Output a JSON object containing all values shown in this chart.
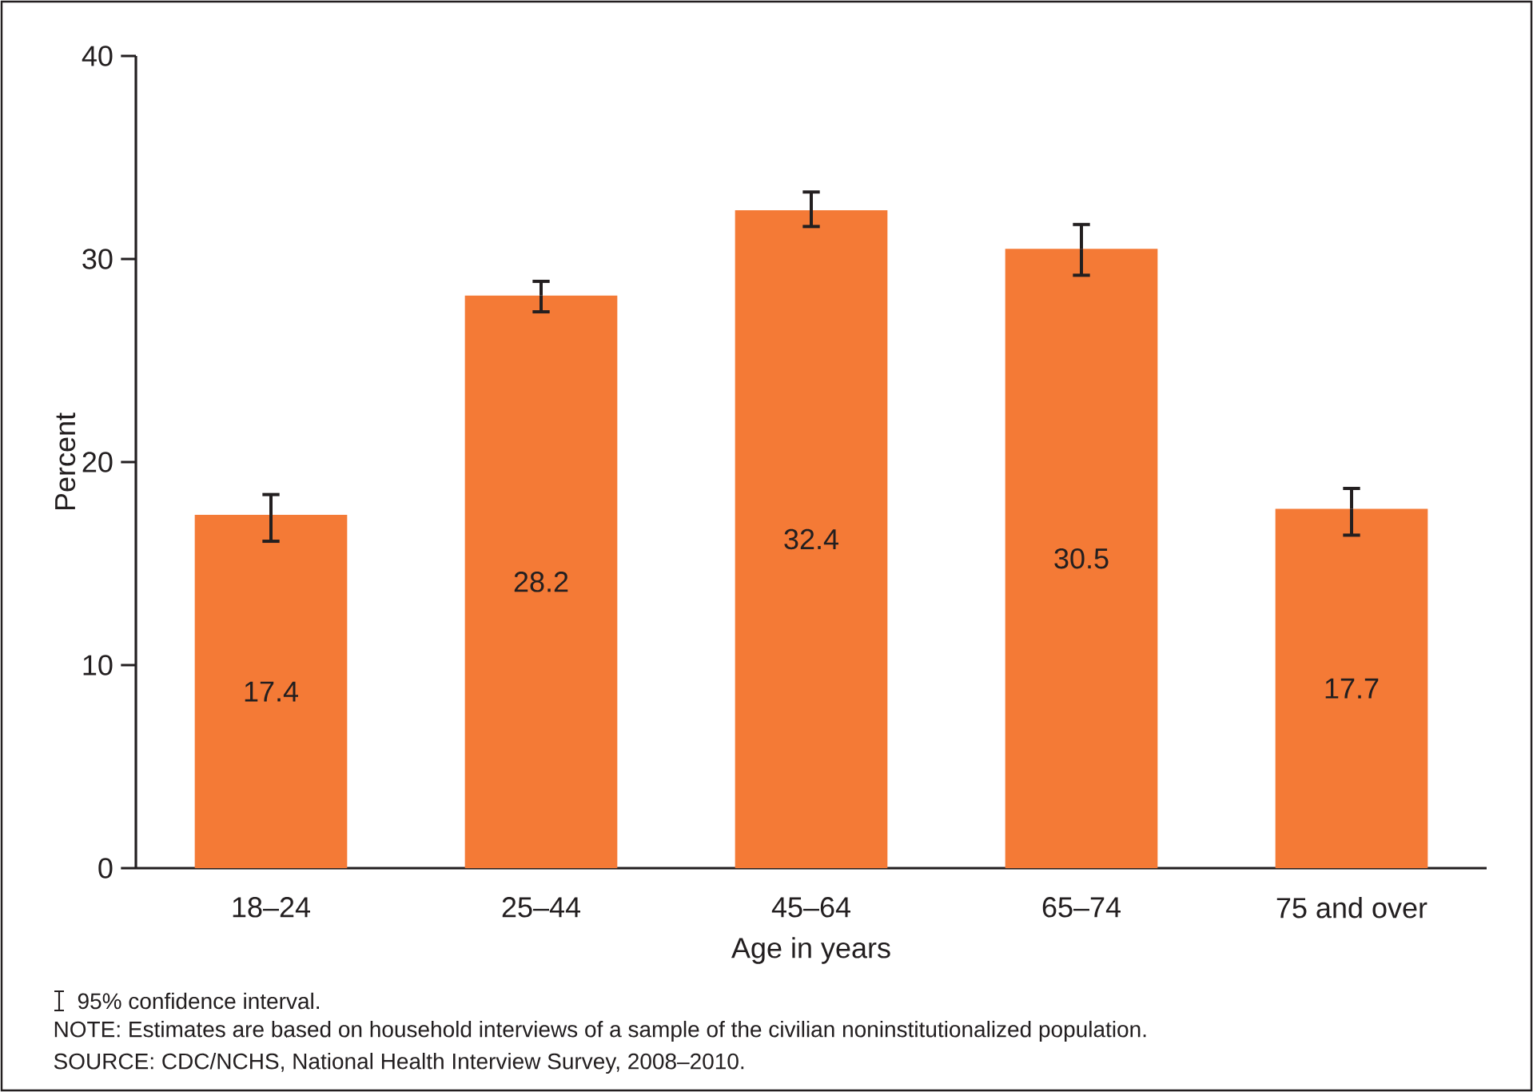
{
  "chart_data": {
    "type": "bar",
    "categories": [
      "18–24",
      "25–44",
      "45–64",
      "65–74",
      "75 and over"
    ],
    "values": [
      17.4,
      28.2,
      32.4,
      30.5,
      17.7
    ],
    "errors": [
      [
        16.1,
        18.4
      ],
      [
        27.4,
        28.9
      ],
      [
        31.6,
        33.3
      ],
      [
        29.2,
        31.7
      ],
      [
        16.4,
        18.7
      ]
    ],
    "color": "#f47a36",
    "data_labels": true,
    "xlabel": "Age in years",
    "ylabel": "Percent",
    "ylim": [
      0,
      40
    ],
    "yticks": [
      0,
      10,
      20,
      30,
      40
    ],
    "annotations": [
      "95% confidence interval.",
      "NOTE: Estimates are based on household interviews of a sample of the civilian noninstitutionalized population.",
      "SOURCE: CDC/NCHS, National Health Interview Survey, 2008–2010."
    ]
  }
}
